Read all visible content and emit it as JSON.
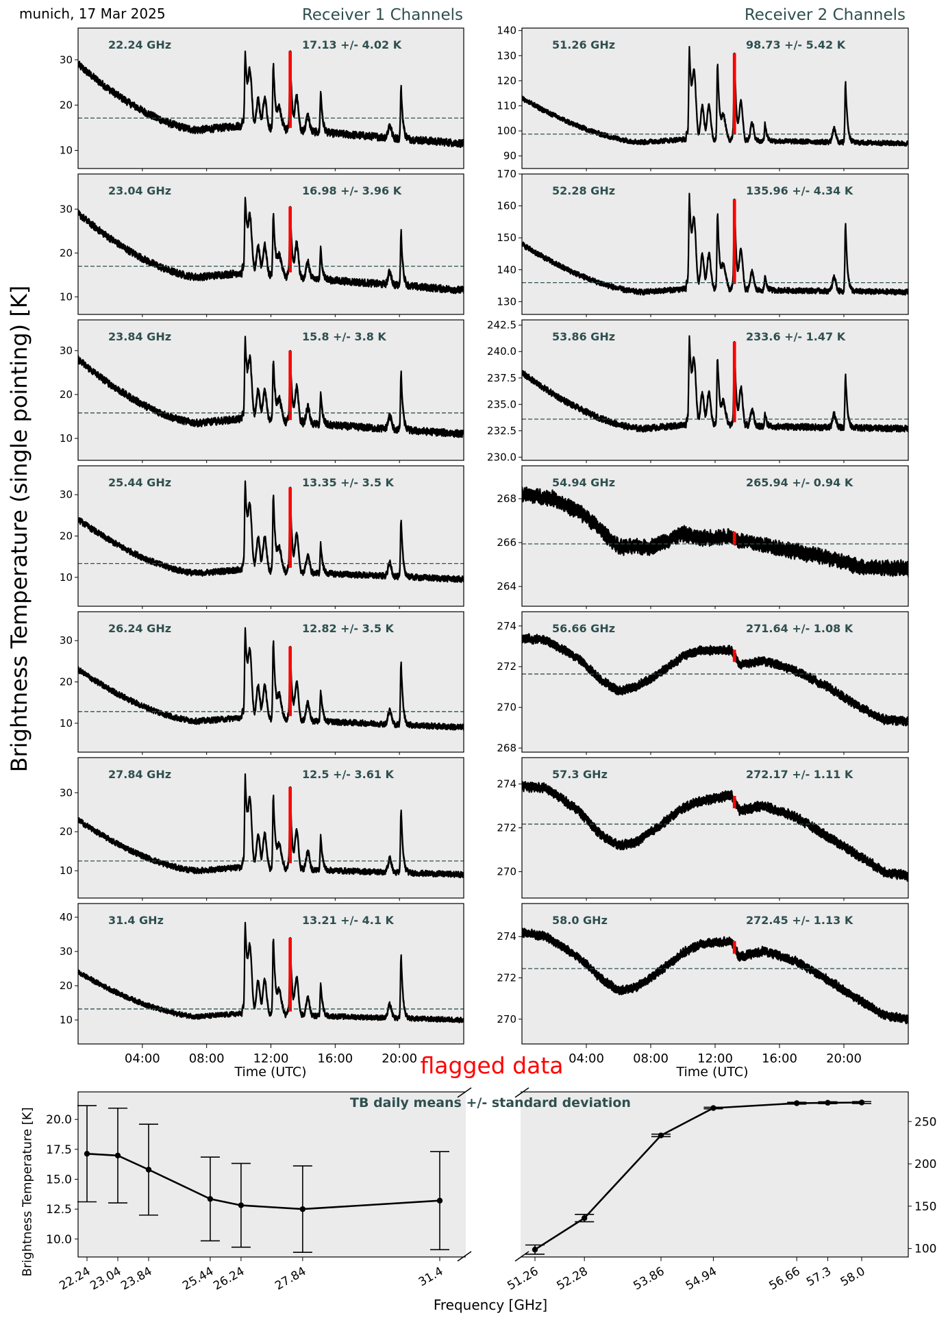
{
  "header": {
    "site_date": "munich, 17 Mar 2025",
    "receiver1_title": "Receiver 1 Channels",
    "receiver2_title": "Receiver 2 Channels"
  },
  "labels": {
    "y_main": "Brightness Temperature (single pointing) [K]",
    "x_time": "Time (UTC)",
    "flagged": "flagged data",
    "bottom_y": "Brightness Temperature [K]",
    "bottom_x": "Frequency [GHz]"
  },
  "colors": {
    "panel_bg": "#ebebeb",
    "trace": "#000000",
    "flag": "#ff0000",
    "mean_line": "#2f4f4f",
    "annotation": "#2f4f4f"
  },
  "chart_data": [
    {
      "type": "line",
      "receiver": 1,
      "xlabel": "Time (UTC)",
      "x_ticks": [
        "04:00",
        "08:00",
        "12:00",
        "16:00",
        "20:00"
      ],
      "x_range_hours": [
        0,
        24
      ],
      "flagged_window_hours": [
        13.1,
        13.3
      ],
      "series_shape": "decline from early morning to a minimum near 07:30, sharp spikes near 10:30, 12:00, 13:10, 15:00 and 20:00",
      "channels": [
        {
          "frequency": "22.24 GHz",
          "mean_label": "17.13 +/- 4.02 K",
          "mean": 17.13,
          "std": 4.02,
          "ylim": [
            6,
            37
          ],
          "yticks": [
            10,
            20,
            30
          ],
          "start": 29,
          "min": 14.5,
          "end": 11.5,
          "spike_peaks": [
            31,
            28,
            30,
            23,
            24
          ]
        },
        {
          "frequency": "23.04 GHz",
          "mean_label": "16.98 +/- 3.96 K",
          "mean": 16.98,
          "std": 3.96,
          "ylim": [
            6,
            38
          ],
          "yticks": [
            10,
            20,
            30
          ],
          "start": 29,
          "min": 14.5,
          "end": 11.5,
          "spike_peaks": [
            32,
            28,
            29,
            21,
            25
          ]
        },
        {
          "frequency": "23.84 GHz",
          "mean_label": "15.8 +/- 3.8 K",
          "mean": 15.8,
          "std": 3.8,
          "ylim": [
            5,
            37
          ],
          "yticks": [
            10,
            20,
            30
          ],
          "start": 28,
          "min": 13.5,
          "end": 11,
          "spike_peaks": [
            32,
            27,
            28,
            20,
            25
          ]
        },
        {
          "frequency": "25.44 GHz",
          "mean_label": "13.35 +/- 3.5 K",
          "mean": 13.35,
          "std": 3.5,
          "ylim": [
            3,
            37
          ],
          "yticks": [
            10,
            20,
            30
          ],
          "start": 24,
          "min": 11,
          "end": 9.5,
          "spike_peaks": [
            32,
            29,
            30,
            18,
            24
          ]
        },
        {
          "frequency": "26.24 GHz",
          "mean_label": "12.82 +/- 3.5 K",
          "mean": 12.82,
          "std": 3.5,
          "ylim": [
            3,
            37
          ],
          "yticks": [
            10,
            20,
            30
          ],
          "start": 23,
          "min": 10.5,
          "end": 9,
          "spike_peaks": [
            32,
            29,
            27,
            18,
            25
          ]
        },
        {
          "frequency": "27.84 GHz",
          "mean_label": "12.5 +/- 3.61 K",
          "mean": 12.5,
          "std": 3.61,
          "ylim": [
            3,
            39
          ],
          "yticks": [
            10,
            20,
            30
          ],
          "start": 23,
          "min": 10,
          "end": 9,
          "spike_peaks": [
            33,
            28,
            29,
            19,
            26
          ]
        },
        {
          "frequency": "31.4 GHz",
          "mean_label": "13.21 +/- 4.1 K",
          "mean": 13.21,
          "std": 4.1,
          "ylim": [
            3,
            44
          ],
          "yticks": [
            10,
            20,
            30,
            40
          ],
          "start": 24,
          "min": 11,
          "end": 10,
          "spike_peaks": [
            37,
            33,
            32,
            21,
            29
          ]
        }
      ]
    },
    {
      "type": "line",
      "receiver": 2,
      "xlabel": "Time (UTC)",
      "x_ticks": [
        "04:00",
        "08:00",
        "12:00",
        "16:00",
        "20:00"
      ],
      "x_range_hours": [
        0,
        24
      ],
      "flagged_window_hours": [
        13.1,
        13.3
      ],
      "channels": [
        {
          "frequency": "51.26 GHz",
          "mean_label": "98.73 +/- 5.42 K",
          "mean": 98.73,
          "std": 5.42,
          "ylim": [
            85,
            141
          ],
          "yticks": [
            90,
            100,
            110,
            120,
            130,
            140
          ],
          "shape": "spiky",
          "start": 113,
          "min": 95.5,
          "end": 95,
          "spike_peaks": [
            131,
            125,
            128,
            103,
            120
          ]
        },
        {
          "frequency": "52.28 GHz",
          "mean_label": "135.96 +/- 4.34 K",
          "mean": 135.96,
          "std": 4.34,
          "ylim": [
            126,
            170
          ],
          "yticks": [
            130,
            140,
            150,
            160,
            170
          ],
          "shape": "spiky",
          "start": 148,
          "min": 133,
          "end": 133,
          "spike_peaks": [
            162,
            156,
            160,
            138,
            155
          ]
        },
        {
          "frequency": "53.86 GHz",
          "mean_label": "233.6 +/- 1.47 K",
          "mean": 233.6,
          "std": 1.47,
          "ylim": [
            229.7,
            243
          ],
          "yticks": [
            230.0,
            232.5,
            235.0,
            237.5,
            240.0,
            242.5
          ],
          "shape": "spiky",
          "start": 238,
          "min": 232.7,
          "end": 232.7,
          "spike_peaks": [
            241,
            239,
            240,
            234,
            238
          ]
        },
        {
          "frequency": "54.94 GHz",
          "mean_label": "265.94 +/- 0.94 K",
          "mean": 265.94,
          "std": 0.94,
          "ylim": [
            263.1,
            269.5
          ],
          "yticks": [
            264,
            266,
            268
          ],
          "shape": "smooth",
          "points": [
            [
              0,
              268.2
            ],
            [
              2,
              268.0
            ],
            [
              4,
              267.2
            ],
            [
              6,
              265.8
            ],
            [
              8,
              265.8
            ],
            [
              10,
              266.4
            ],
            [
              11,
              266.2
            ],
            [
              13,
              266.3
            ],
            [
              13.4,
              266.1
            ],
            [
              15,
              265.9
            ],
            [
              17,
              265.6
            ],
            [
              19,
              265.3
            ],
            [
              21,
              264.9
            ],
            [
              24,
              264.8
            ]
          ],
          "thickness": 0.8
        },
        {
          "frequency": "56.66 GHz",
          "mean_label": "271.64 +/- 1.08 K",
          "mean": 271.64,
          "std": 1.08,
          "ylim": [
            267.8,
            274.7
          ],
          "yticks": [
            268,
            270,
            272,
            274
          ],
          "shape": "smooth",
          "points": [
            [
              0,
              273.4
            ],
            [
              1.5,
              273.3
            ],
            [
              3.5,
              272.4
            ],
            [
              5,
              271.3
            ],
            [
              6,
              270.8
            ],
            [
              7,
              271.0
            ],
            [
              8,
              271.4
            ],
            [
              10,
              272.5
            ],
            [
              11,
              272.8
            ],
            [
              13,
              272.8
            ],
            [
              13.5,
              272.1
            ],
            [
              15,
              272.3
            ],
            [
              17,
              271.8
            ],
            [
              19,
              271.0
            ],
            [
              21,
              270.0
            ],
            [
              22.5,
              269.4
            ],
            [
              24,
              269.3
            ]
          ],
          "thickness": 0.5
        },
        {
          "frequency": "57.3 GHz",
          "mean_label": "272.17 +/- 1.11 K",
          "mean": 272.17,
          "std": 1.11,
          "ylim": [
            268.8,
            275.2
          ],
          "yticks": [
            270,
            272,
            274
          ],
          "shape": "smooth",
          "points": [
            [
              0,
              273.9
            ],
            [
              1.5,
              273.8
            ],
            [
              3.5,
              272.8
            ],
            [
              5,
              271.6
            ],
            [
              6,
              271.2
            ],
            [
              7,
              271.3
            ],
            [
              8,
              271.8
            ],
            [
              10,
              272.9
            ],
            [
              11,
              273.2
            ],
            [
              13,
              273.5
            ],
            [
              13.5,
              272.8
            ],
            [
              15,
              273.0
            ],
            [
              17,
              272.5
            ],
            [
              19,
              271.6
            ],
            [
              21,
              270.7
            ],
            [
              22.5,
              270.0
            ],
            [
              24,
              269.8
            ]
          ],
          "thickness": 0.5
        },
        {
          "frequency": "58.0 GHz",
          "mean_label": "272.45 +/- 1.13 K",
          "mean": 272.45,
          "std": 1.13,
          "ylim": [
            268.8,
            275.6
          ],
          "yticks": [
            270,
            272,
            274
          ],
          "shape": "smooth",
          "points": [
            [
              0,
              274.2
            ],
            [
              1.5,
              274.0
            ],
            [
              3.5,
              273.0
            ],
            [
              5,
              271.9
            ],
            [
              6,
              271.4
            ],
            [
              7,
              271.5
            ],
            [
              8,
              272.0
            ],
            [
              10,
              273.2
            ],
            [
              11,
              273.6
            ],
            [
              13,
              273.8
            ],
            [
              13.5,
              273.0
            ],
            [
              15,
              273.3
            ],
            [
              17,
              272.8
            ],
            [
              19,
              271.9
            ],
            [
              21,
              270.9
            ],
            [
              22.5,
              270.2
            ],
            [
              24,
              270.0
            ]
          ],
          "thickness": 0.5
        }
      ]
    },
    {
      "type": "line",
      "title": "TB daily means +/- standard deviation",
      "xlabel": "Frequency [GHz]",
      "ylabel": "Brightness Temperature [K]",
      "left_axis": {
        "ylim": [
          8.5,
          22.3
        ],
        "yticks": [
          10.0,
          12.5,
          15.0,
          17.5,
          20.0
        ],
        "x": [
          22.24,
          23.04,
          23.84,
          25.44,
          26.24,
          27.84,
          31.4
        ],
        "x_tick_labels": [
          "22.24",
          "23.04",
          "23.84",
          "25.44",
          "26.24",
          "27.84",
          "31.4"
        ],
        "mean": [
          17.13,
          16.98,
          15.8,
          13.35,
          12.82,
          12.5,
          13.21
        ],
        "std": [
          4.02,
          3.96,
          3.8,
          3.5,
          3.5,
          3.61,
          4.1
        ]
      },
      "right_axis": {
        "ylim": [
          90,
          285
        ],
        "yticks": [
          100,
          150,
          200,
          250
        ],
        "x": [
          51.26,
          52.28,
          53.86,
          54.94,
          56.66,
          57.3,
          58.0
        ],
        "x_tick_labels": [
          "51.26",
          "52.28",
          "53.86",
          "54.94",
          "56.66",
          "57.3",
          "58.0"
        ],
        "mean": [
          98.73,
          135.96,
          233.6,
          265.94,
          271.64,
          272.17,
          272.45
        ],
        "std": [
          5.42,
          4.34,
          1.47,
          0.94,
          1.08,
          1.11,
          1.13
        ]
      }
    }
  ]
}
